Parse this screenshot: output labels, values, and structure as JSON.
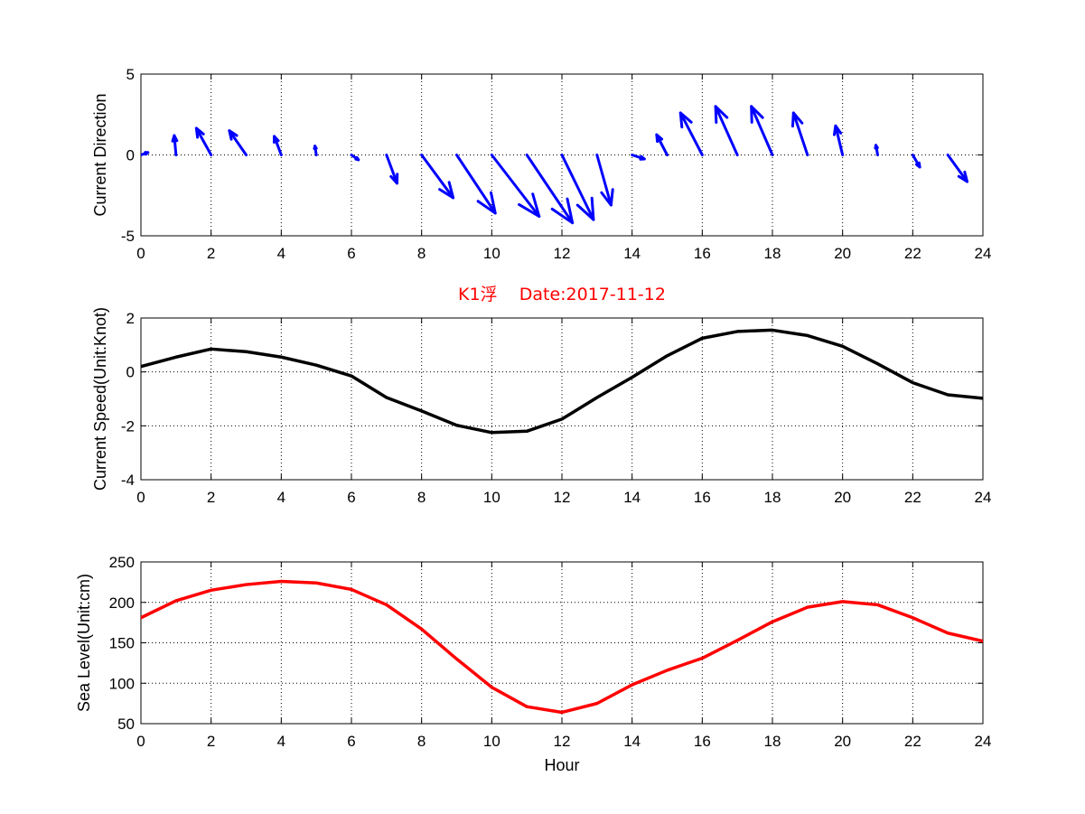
{
  "chart_data": [
    {
      "type": "quiver",
      "title": "",
      "xlabel": "",
      "ylabel": "Current Direction",
      "xlim": [
        0,
        24
      ],
      "ylim": [
        -5,
        5
      ],
      "xticks": [
        0,
        2,
        4,
        6,
        8,
        10,
        12,
        14,
        16,
        18,
        20,
        22,
        24
      ],
      "yticks": [
        -5,
        0,
        5
      ],
      "grid": true,
      "color": "#0000ff",
      "x": [
        0,
        1,
        2,
        3,
        4,
        5,
        6,
        7,
        8,
        9,
        10,
        11,
        12,
        13,
        14,
        15,
        16,
        17,
        18,
        19,
        20,
        21,
        22,
        23
      ],
      "u": [
        0.2,
        -0.05,
        -0.42,
        -0.48,
        -0.2,
        -0.04,
        0.2,
        0.3,
        0.9,
        1.1,
        1.35,
        1.3,
        0.9,
        0.4,
        0.35,
        -0.3,
        -0.62,
        -0.62,
        -0.6,
        -0.4,
        -0.2,
        -0.05,
        0.2,
        0.55
      ],
      "v": [
        0.15,
        1.2,
        1.65,
        1.5,
        1.15,
        0.55,
        -0.3,
        -1.75,
        -2.65,
        -3.6,
        -3.8,
        -4.2,
        -4.0,
        -3.1,
        -0.25,
        1.25,
        2.6,
        3.0,
        3.0,
        2.6,
        1.8,
        0.6,
        -0.75,
        -1.65
      ]
    },
    {
      "type": "line",
      "title": "K1浮    Date:2017-11-12",
      "title_color": "#ff0000",
      "xlabel": "",
      "ylabel": "Current Speed(Unit:Knot)",
      "xlim": [
        0,
        24
      ],
      "ylim": [
        -4,
        2
      ],
      "xticks": [
        0,
        2,
        4,
        6,
        8,
        10,
        12,
        14,
        16,
        18,
        20,
        22,
        24
      ],
      "yticks": [
        -4,
        -2,
        0,
        2
      ],
      "grid": true,
      "x": [
        0,
        1,
        2,
        3,
        4,
        5,
        6,
        7,
        8,
        9,
        10,
        11,
        12,
        13,
        14,
        15,
        16,
        17,
        18,
        19,
        20,
        21,
        22,
        23,
        24
      ],
      "series": [
        {
          "color": "#000000",
          "values": [
            0.2,
            0.55,
            0.85,
            0.75,
            0.55,
            0.25,
            -0.15,
            -0.95,
            -1.45,
            -1.98,
            -2.25,
            -2.2,
            -1.75,
            -0.95,
            -0.2,
            0.6,
            1.25,
            1.5,
            1.55,
            1.35,
            0.95,
            0.3,
            -0.4,
            -0.85,
            -0.98
          ]
        }
      ]
    },
    {
      "type": "line",
      "title": "",
      "xlabel": "Hour",
      "ylabel": "Sea Level(Unit:cm)",
      "xlim": [
        0,
        24
      ],
      "ylim": [
        50,
        250
      ],
      "xticks": [
        0,
        2,
        4,
        6,
        8,
        10,
        12,
        14,
        16,
        18,
        20,
        22,
        24
      ],
      "yticks": [
        50,
        100,
        150,
        200,
        250
      ],
      "grid": true,
      "x": [
        0,
        1,
        2,
        3,
        4,
        5,
        6,
        7,
        8,
        9,
        10,
        11,
        12,
        13,
        14,
        15,
        16,
        17,
        18,
        19,
        20,
        21,
        22,
        23,
        24
      ],
      "series": [
        {
          "color": "#ff0000",
          "values": [
            181,
            202,
            215,
            222,
            226,
            224,
            216,
            197,
            167,
            130,
            95,
            71,
            64,
            75,
            98,
            116,
            131,
            153,
            176,
            194,
            201,
            197,
            181,
            162,
            152
          ]
        }
      ]
    }
  ]
}
